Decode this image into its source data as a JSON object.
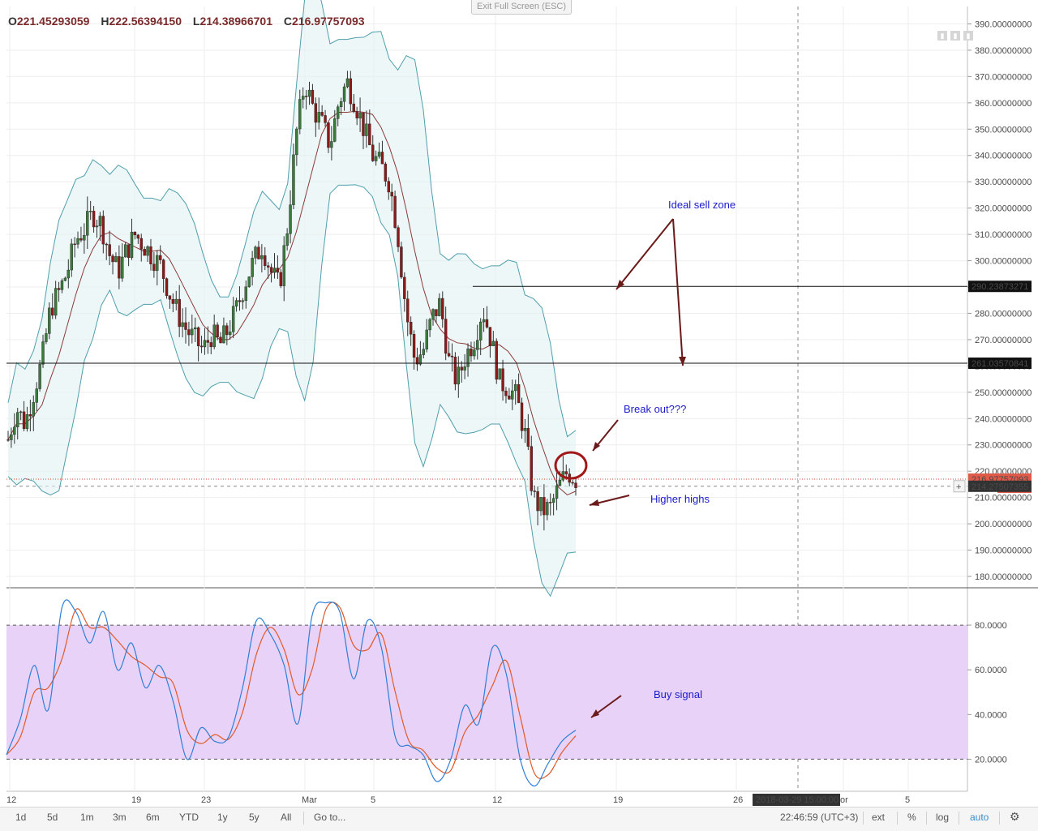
{
  "header": {
    "ohlc": [
      {
        "label": "O",
        "value": "221.45293059"
      },
      {
        "label": "H",
        "value": "222.56394150"
      },
      {
        "label": "L",
        "value": "214.38966701"
      },
      {
        "label": "C",
        "value": "216.97757093"
      }
    ],
    "exit_fullscreen": "Exit Full Screen (ESC)"
  },
  "chart_data": [
    {
      "type": "candlestick",
      "price_axis": {
        "ticks": [
          "390.00000000",
          "380.00000000",
          "370.00000000",
          "360.00000000",
          "350.00000000",
          "340.00000000",
          "330.00000000",
          "320.00000000",
          "310.00000000",
          "300.00000000",
          "290.00000000",
          "280.00000000",
          "270.00000000",
          "260.00000000",
          "250.00000000",
          "240.00000000",
          "230.00000000",
          "220.00000000",
          "210.00000000",
          "200.00000000",
          "190.00000000",
          "180.00000000"
        ],
        "range": [
          176,
          396
        ]
      },
      "price_labels": {
        "resistance_upper": "290.23873271",
        "resistance_lower": "261.03570841",
        "last_price": "216.97757093",
        "cursor_price": "214.27507355",
        "hidden_label_tail": "15:00"
      },
      "horizontal_levels": [
        290.24,
        261.04
      ],
      "price_path": [
        232,
        244,
        238,
        250,
        262,
        282,
        288,
        296,
        308,
        312,
        318,
        314,
        302,
        296,
        304,
        310,
        306,
        302,
        298,
        288,
        280,
        274,
        270,
        266,
        272,
        268,
        274,
        282,
        292,
        300,
        306,
        296,
        290,
        314,
        348,
        368,
        358,
        352,
        344,
        360,
        368,
        360,
        350,
        340,
        336,
        330,
        310,
        280,
        262,
        266,
        278,
        284,
        262,
        254,
        264,
        270,
        282,
        270,
        254,
        252,
        248,
        234,
        210,
        205,
        206,
        214,
        220,
        217
      ],
      "series": [
        {
          "name": "basis"
        },
        {
          "name": "upper_band"
        },
        {
          "name": "lower_band"
        }
      ],
      "annotations": [
        "Ideal sell zone",
        "Break out???",
        "Higher highs"
      ]
    },
    {
      "type": "line",
      "ylim": [
        6,
        96
      ],
      "ticks": [
        "80.0000",
        "60.0000",
        "40.0000",
        "20.0000"
      ],
      "overbought": 80,
      "oversold": 20,
      "series": [
        {
          "name": "k",
          "values": [
            22,
            38,
            62,
            42,
            88,
            86,
            72,
            86,
            60,
            72,
            52,
            62,
            46,
            20,
            34,
            28,
            30,
            52,
            82,
            76,
            62,
            36,
            84,
            90,
            86,
            56,
            82,
            70,
            30,
            26,
            22,
            10,
            20,
            44,
            36,
            70,
            58,
            20,
            8,
            18,
            28,
            33
          ]
        },
        {
          "name": "d"
        }
      ],
      "annotations": [
        "Buy signal"
      ]
    }
  ],
  "time_axis": {
    "labels": [
      "12",
      "19",
      "23",
      "Mar",
      "5",
      "12",
      "19",
      "26",
      "or",
      "5"
    ],
    "cursor_label": "2018-03-29 15:00:00"
  },
  "toolbar": {
    "ranges": [
      "1d",
      "5d",
      "1m",
      "3m",
      "6m",
      "YTD",
      "1y",
      "5y",
      "All"
    ],
    "goto": "Go to...",
    "clock": "22:46:59 (UTC+3)",
    "ext": "ext",
    "percent": "%",
    "log": "log",
    "auto": "auto"
  },
  "colors": {
    "candle_up": "#3a7a3a",
    "candle_down": "#8b1a1a",
    "band": "#4f9fab",
    "basis": "#8b3a3a",
    "stoch_k": "#2f7fd6",
    "stoch_d": "#e05a2a",
    "stoch_fill": "#e9d2f7",
    "annotation_arrow": "#6b1a1a",
    "annotation_text": "#1a1acc"
  }
}
